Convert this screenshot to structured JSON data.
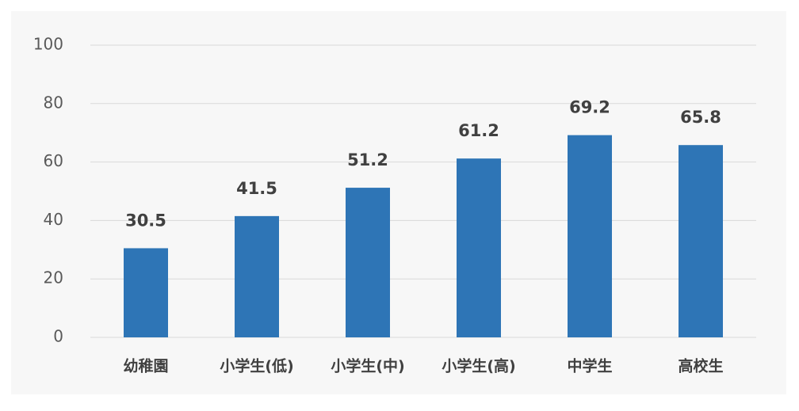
{
  "chart_data": {
    "type": "bar",
    "categories": [
      "幼稚園",
      "小学生(低)",
      "小学生(中)",
      "小学生(高)",
      "中学生",
      "高校生"
    ],
    "values": [
      30.5,
      41.5,
      51.2,
      61.2,
      69.2,
      65.8
    ],
    "color": "#2e75b6",
    "ylim": [
      0,
      100
    ],
    "yticks": [
      0,
      20,
      40,
      60,
      80,
      100
    ],
    "grid": true,
    "data_labels": true
  }
}
